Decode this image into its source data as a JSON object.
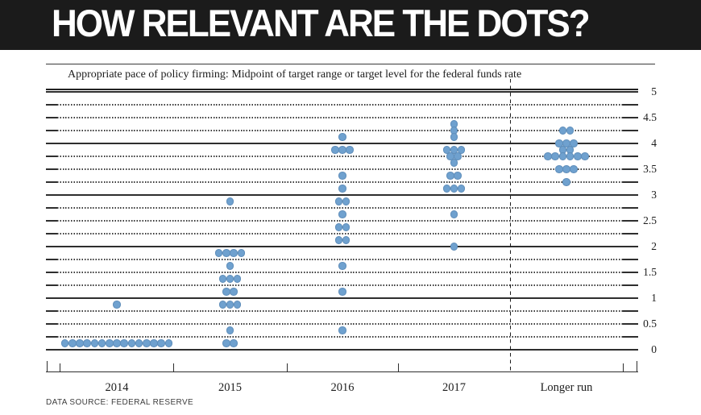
{
  "banner": {
    "title": "HOW RELEVANT ARE THE DOTS?"
  },
  "chart": {
    "title": "Appropriate pace of policy firming: Midpoint of target range or target level for the federal funds rate",
    "source_note": "DATA SOURCE: FEDERAL RESERVE"
  },
  "chart_data": {
    "type": "scatter",
    "title": "Appropriate pace of policy firming: Midpoint of target range or target level for the federal funds rate",
    "ylim": [
      0,
      5
    ],
    "grid_step": 0.25,
    "grid": "horizontal lines every 0.25; solid at integers, dotted otherwise",
    "y_tick_labels": [
      {
        "value": 5,
        "label": "5"
      },
      {
        "value": 4.5,
        "label": "4.5"
      },
      {
        "value": 4,
        "label": "4"
      },
      {
        "value": 3.5,
        "label": "3.5"
      },
      {
        "value": 3,
        "label": "3"
      },
      {
        "value": 2.5,
        "label": "2.5"
      },
      {
        "value": 2,
        "label": "2"
      },
      {
        "value": 1.5,
        "label": "1.5"
      },
      {
        "value": 1,
        "label": "1"
      },
      {
        "value": 0.5,
        "label": "0.5"
      },
      {
        "value": 0,
        "label": "0"
      }
    ],
    "dot_color": "#6fa1cf",
    "divider_between": [
      "2017",
      "Longer run"
    ],
    "columns": [
      {
        "label": "2014",
        "dots": [
          {
            "rate": 0.875,
            "count": 1
          },
          {
            "rate": 0.125,
            "count": 15
          }
        ]
      },
      {
        "label": "2015",
        "dots": [
          {
            "rate": 2.875,
            "count": 1
          },
          {
            "rate": 1.875,
            "count": 4
          },
          {
            "rate": 1.625,
            "count": 1
          },
          {
            "rate": 1.375,
            "count": 3
          },
          {
            "rate": 1.125,
            "count": 2
          },
          {
            "rate": 0.875,
            "count": 3
          },
          {
            "rate": 0.375,
            "count": 1
          },
          {
            "rate": 0.125,
            "count": 2
          }
        ]
      },
      {
        "label": "2016",
        "dots": [
          {
            "rate": 4.125,
            "count": 1
          },
          {
            "rate": 3.875,
            "count": 3
          },
          {
            "rate": 3.375,
            "count": 1
          },
          {
            "rate": 3.125,
            "count": 1
          },
          {
            "rate": 2.875,
            "count": 2
          },
          {
            "rate": 2.625,
            "count": 1
          },
          {
            "rate": 2.375,
            "count": 2
          },
          {
            "rate": 2.125,
            "count": 2
          },
          {
            "rate": 1.625,
            "count": 1
          },
          {
            "rate": 1.125,
            "count": 1
          },
          {
            "rate": 0.375,
            "count": 1
          }
        ]
      },
      {
        "label": "2017",
        "dots": [
          {
            "rate": 4.375,
            "count": 1
          },
          {
            "rate": 4.25,
            "count": 1
          },
          {
            "rate": 4.125,
            "count": 1
          },
          {
            "rate": 3.875,
            "count": 3
          },
          {
            "rate": 3.75,
            "count": 2
          },
          {
            "rate": 3.625,
            "count": 1
          },
          {
            "rate": 3.375,
            "count": 2
          },
          {
            "rate": 3.125,
            "count": 3
          },
          {
            "rate": 2.625,
            "count": 1
          },
          {
            "rate": 2.0,
            "count": 1
          }
        ]
      },
      {
        "label": "Longer run",
        "dots": [
          {
            "rate": 4.25,
            "count": 2
          },
          {
            "rate": 4.0,
            "count": 3
          },
          {
            "rate": 3.875,
            "count": 2
          },
          {
            "rate": 3.75,
            "count": 6
          },
          {
            "rate": 3.5,
            "count": 3
          },
          {
            "rate": 3.25,
            "count": 1
          }
        ]
      }
    ]
  }
}
